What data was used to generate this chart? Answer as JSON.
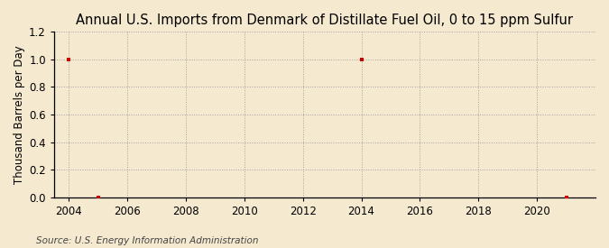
{
  "title": "Annual U.S. Imports from Denmark of Distillate Fuel Oil, 0 to 15 ppm Sulfur",
  "ylabel": "Thousand Barrels per Day",
  "source": "Source: U.S. Energy Information Administration",
  "background_color": "#f5e9d0",
  "plot_background_color": "#f5e9d0",
  "grid_color": "#999999",
  "data_points": [
    {
      "year": 2004,
      "value": 1.0
    },
    {
      "year": 2005,
      "value": 0.0
    },
    {
      "year": 2014,
      "value": 1.0
    },
    {
      "year": 2021,
      "value": 0.0
    }
  ],
  "marker_color": "#cc0000",
  "xmin": 2003.5,
  "xmax": 2022.0,
  "ymin": 0.0,
  "ymax": 1.2,
  "xticks": [
    2004,
    2006,
    2008,
    2010,
    2012,
    2014,
    2016,
    2018,
    2020
  ],
  "yticks": [
    0.0,
    0.2,
    0.4,
    0.6,
    0.8,
    1.0,
    1.2
  ],
  "title_fontsize": 10.5,
  "label_fontsize": 8.5,
  "tick_fontsize": 8.5,
  "source_fontsize": 7.5
}
